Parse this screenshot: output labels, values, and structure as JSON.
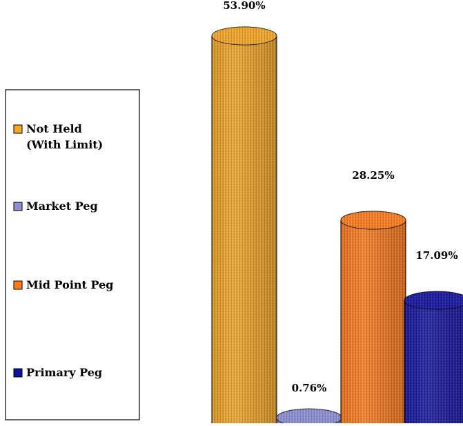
{
  "chart_data": {
    "type": "bar",
    "subtype": "3d-cylinder",
    "title": "",
    "xlabel": "",
    "ylabel": "",
    "categories": [
      "Not Held (With Limit)",
      "Market Peg",
      "Mid Point Peg",
      "Primary Peg"
    ],
    "values": [
      53.9,
      0.76,
      28.25,
      17.09
    ],
    "value_labels": [
      "53.90%",
      "0.76%",
      "28.25%",
      "17.09%"
    ],
    "ylim": [
      0,
      53.9
    ],
    "grid": false,
    "legend_position": "left",
    "series_colors": [
      "#F5A623",
      "#8C8FD6",
      "#FF7A1A",
      "#1010A0"
    ],
    "legend": [
      {
        "lines": [
          "Not Held",
          "(With Limit)"
        ],
        "color": "#F5A623"
      },
      {
        "lines": [
          "Market Peg"
        ],
        "color": "#8C8FD6"
      },
      {
        "lines": [
          "Mid Point Peg"
        ],
        "color": "#FF7A1A"
      },
      {
        "lines": [
          "Primary Peg"
        ],
        "color": "#1010A0"
      }
    ]
  }
}
